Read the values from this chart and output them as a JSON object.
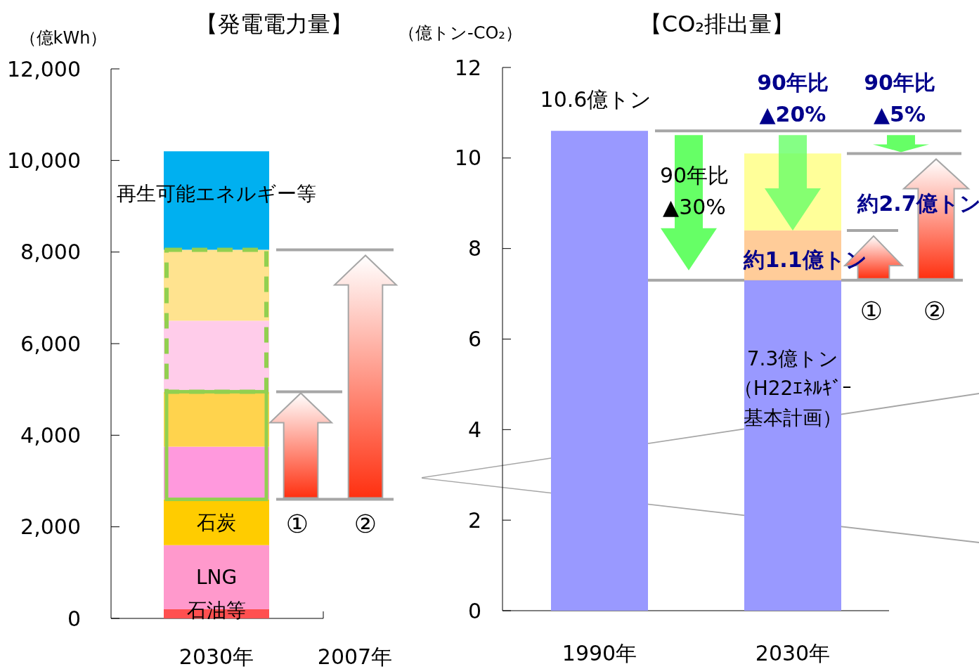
{
  "chart_data": [
    {
      "type": "bar",
      "stacked": true,
      "title": "【発電電力量】",
      "ylabel": "（億kWh）",
      "categories": [
        "2030年",
        "2007年"
      ],
      "ylim": [
        0,
        12000
      ],
      "yticks": [
        {
          "value": 0,
          "label": "0"
        },
        {
          "value": 2000,
          "label": "2,000"
        },
        {
          "value": 4000,
          "label": "4,000"
        },
        {
          "value": 6000,
          "label": "6,000"
        },
        {
          "value": 8000,
          "label": "8,000"
        },
        {
          "value": 10000,
          "label": "10,000"
        },
        {
          "value": 12000,
          "label": "12,000"
        }
      ],
      "grid": false,
      "legend": false,
      "series": [
        {
          "name": "石油等",
          "color": "#ff5050",
          "values": [
            200,
            null
          ]
        },
        {
          "name": "LNG",
          "color": "#ff99cc",
          "values": [
            1400,
            null
          ]
        },
        {
          "name": "石炭",
          "color": "#ffcc00",
          "values": [
            1000,
            null
          ]
        },
        {
          "color": "#ff99dd",
          "values": [
            1150,
            null
          ]
        },
        {
          "color": "#ffd34d",
          "values": [
            1200,
            null
          ]
        },
        {
          "color": "#ffccea",
          "values": [
            1550,
            null
          ]
        },
        {
          "color": "#ffe38f",
          "values": [
            1550,
            null
          ]
        },
        {
          "name": "再生可能エネルギー等",
          "color": "#00b0f0",
          "values": [
            2150,
            null
          ]
        }
      ],
      "ref_lines": [
        {
          "axis": "y",
          "value": 8050,
          "color": "#a6a6a6"
        },
        {
          "axis": "y",
          "value": 4950,
          "color": "#a6a6a6"
        },
        {
          "axis": "y",
          "value": 2600,
          "color": "#a6a6a6"
        }
      ],
      "annotations": [
        "①",
        "②"
      ]
    },
    {
      "type": "bar",
      "stacked": true,
      "title": "【CO₂排出量】",
      "ylabel": "（億トン-CO₂）",
      "categories": [
        "1990年",
        "2030年"
      ],
      "ylim": [
        0,
        12
      ],
      "yticks": [
        0,
        2,
        4,
        6,
        8,
        10,
        12
      ],
      "grid": false,
      "legend": false,
      "series": [
        {
          "color": "#9999ff",
          "values": [
            10.6,
            7.3
          ]
        },
        {
          "color": "#ffcc99",
          "values": [
            null,
            1.1
          ]
        },
        {
          "color": "#ffff99",
          "values": [
            null,
            1.7
          ]
        }
      ],
      "ref_lines": [
        {
          "axis": "y",
          "value": 10.6,
          "color": "#a6a6a6"
        },
        {
          "axis": "y",
          "value": 10.1,
          "color": "#a6a6a6"
        },
        {
          "axis": "y",
          "value": 8.4,
          "color": "#a6a6a6"
        },
        {
          "axis": "y",
          "value": 7.3,
          "color": "#a6a6a6"
        }
      ],
      "annotations": [
        "10.6億トン",
        "90年比▲30%",
        {
          "text": "90年比▲20%",
          "x": "2030年",
          "y": 10.6
        },
        "90年比▲5%",
        "約2.7億トン",
        "約1.1億トン",
        "7.3億トン（H22ｴﾈﾙｷﾞｰ基本計画）",
        "①",
        "②"
      ]
    }
  ]
}
